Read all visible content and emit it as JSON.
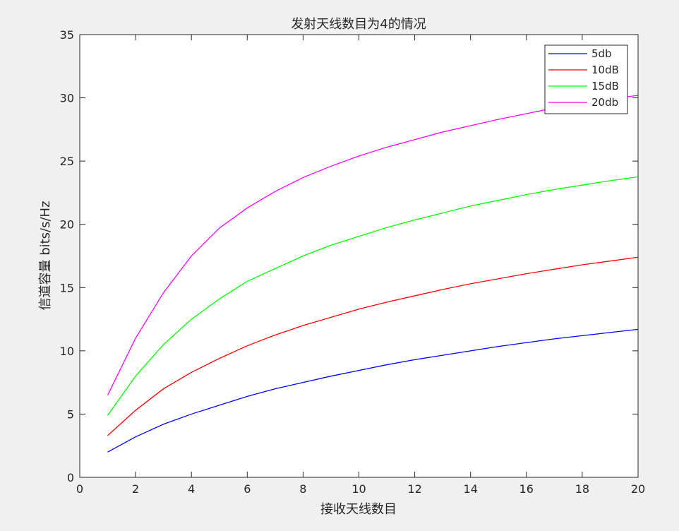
{
  "chart_data": {
    "type": "line",
    "title": "发射天线数目为4的情况",
    "xlabel": "接收天线数目",
    "ylabel": "信道容量 bits/s/Hz",
    "xlim": [
      0,
      20
    ],
    "ylim": [
      0,
      35
    ],
    "x_ticks": [
      0,
      2,
      4,
      6,
      8,
      10,
      12,
      14,
      16,
      18,
      20
    ],
    "y_ticks": [
      0,
      5,
      10,
      15,
      20,
      25,
      30,
      35
    ],
    "grid": false,
    "legend_position": "top-right",
    "x": [
      1,
      2,
      3,
      4,
      5,
      6,
      7,
      8,
      9,
      10,
      11,
      12,
      13,
      14,
      15,
      16,
      17,
      18,
      19,
      20
    ],
    "series": [
      {
        "name": "5db",
        "color": "#0000ff",
        "values": [
          2.0,
          3.2,
          4.2,
          5.0,
          5.7,
          6.4,
          7.0,
          7.5,
          8.0,
          8.45,
          8.9,
          9.3,
          9.65,
          10.0,
          10.35,
          10.65,
          10.95,
          11.2,
          11.45,
          11.7
        ]
      },
      {
        "name": "10dB",
        "color": "#ff0000",
        "values": [
          3.3,
          5.3,
          7.0,
          8.3,
          9.4,
          10.4,
          11.25,
          12.0,
          12.65,
          13.3,
          13.85,
          14.35,
          14.85,
          15.3,
          15.7,
          16.1,
          16.45,
          16.8,
          17.1,
          17.4
        ]
      },
      {
        "name": "15dB",
        "color": "#00ff00",
        "values": [
          4.9,
          8.0,
          10.5,
          12.5,
          14.1,
          15.5,
          16.5,
          17.5,
          18.35,
          19.05,
          19.75,
          20.35,
          20.9,
          21.45,
          21.9,
          22.35,
          22.75,
          23.1,
          23.45,
          23.75
        ]
      },
      {
        "name": "20db",
        "color": "#ff00ff",
        "values": [
          6.5,
          11.0,
          14.6,
          17.5,
          19.7,
          21.3,
          22.6,
          23.7,
          24.6,
          25.4,
          26.1,
          26.7,
          27.3,
          27.8,
          28.3,
          28.75,
          29.2,
          29.6,
          29.9,
          30.2
        ]
      }
    ]
  }
}
